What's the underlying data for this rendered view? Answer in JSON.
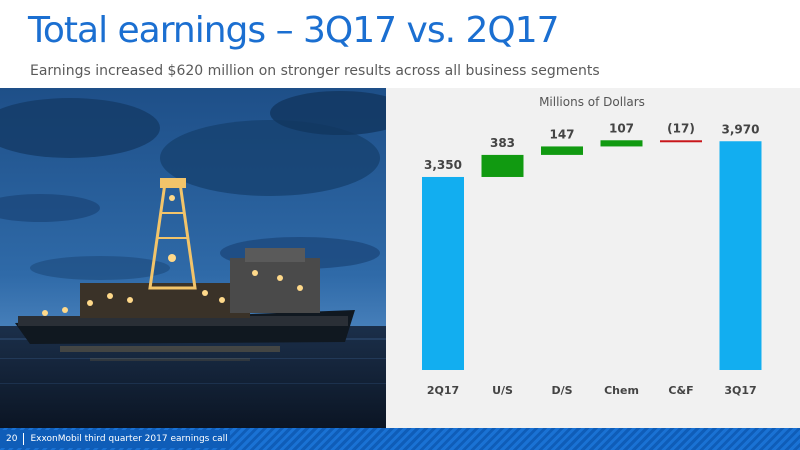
{
  "slide": {
    "title": "Total earnings – 3Q17 vs. 2Q17",
    "subtitle": "Earnings increased $620 million on stronger results across all business segments",
    "page_number": "20",
    "footer": "ExxonMobil third quarter 2017 earnings call",
    "photo": "drillship-at-dusk"
  },
  "colors": {
    "title": "#1b6fd1",
    "total_bar": "#12aef0",
    "increase_bar": "#119a11",
    "decrease_bar": "#c8161b",
    "panel_bg": "#f1f1f1",
    "footer": "#0f5db8"
  },
  "chart_data": {
    "type": "bar",
    "subtype": "waterfall",
    "title": "Millions of Dollars",
    "categories": [
      "2Q17",
      "U/S",
      "D/S",
      "Chem",
      "C&F",
      "3Q17"
    ],
    "values": [
      3350,
      383,
      147,
      107,
      -17,
      3970
    ],
    "kinds": [
      "total",
      "delta",
      "delta",
      "delta",
      "delta",
      "total"
    ],
    "value_labels": [
      "3,350",
      "383",
      "147",
      "107",
      "(17)",
      "3,970"
    ],
    "ylim": [
      0,
      4200
    ],
    "grid": false,
    "legend": "none"
  }
}
